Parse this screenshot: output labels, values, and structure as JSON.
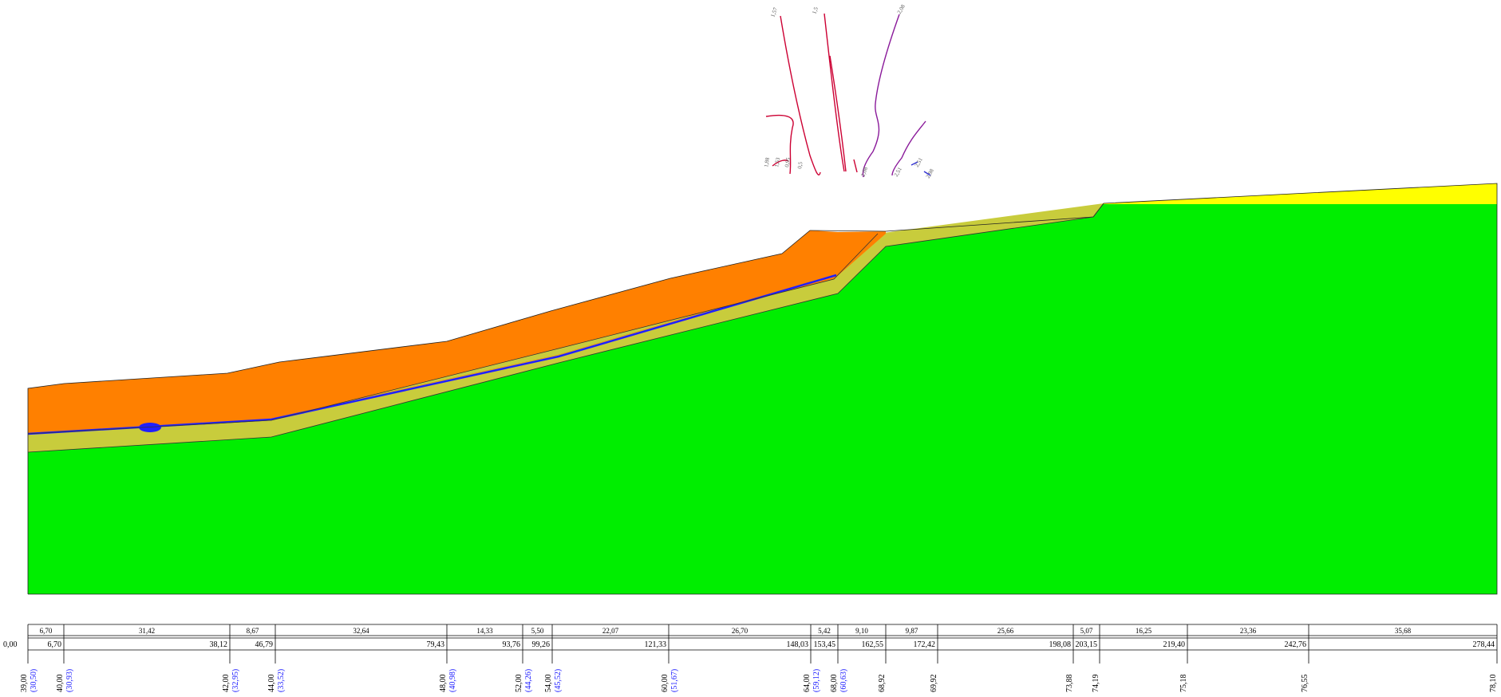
{
  "colors": {
    "bedrock": "#00ee00",
    "weathered": "#c8cc3c",
    "fill": "#ff8000",
    "topsoil": "#ffff00",
    "water_line": "#2020ff",
    "iso_red": "#cc0033",
    "iso_purple": "#8a1a9a",
    "iso_blue": "#3030d0"
  },
  "isolines": [
    {
      "label": "1,57",
      "color": "iso_red"
    },
    {
      "label": "1,5",
      "color": "iso_red"
    },
    {
      "label": "2,08",
      "color": "iso_purple"
    },
    {
      "label": "1,88",
      "color": "iso_red"
    },
    {
      "label": "1,53",
      "color": "iso_red"
    },
    {
      "label": "0,95",
      "color": "iso_red"
    },
    {
      "label": "0,5",
      "color": "iso_red"
    },
    {
      "label": "2,08",
      "color": "iso_purple"
    },
    {
      "label": "2,51",
      "color": "iso_blue"
    },
    {
      "label": "2,51",
      "color": "iso_blue"
    },
    {
      "label": "2,98",
      "color": "iso_blue"
    }
  ],
  "bottom_table": {
    "start_cumulative": "0,00",
    "columns": [
      {
        "seg": "6,70",
        "cum": "6,70",
        "elev": "39,00",
        "h": "(30,50)"
      },
      {
        "seg": "31,42",
        "cum": "38,12",
        "elev": "40,00",
        "h": "(30,93)"
      },
      {
        "seg": "8,67",
        "cum": "46,79",
        "elev": "42,00",
        "h": "(32,95)"
      },
      {
        "seg": "32,64",
        "cum": "79,43",
        "elev": "44,00",
        "h": "(33,52)"
      },
      {
        "seg": "14,33",
        "cum": "93,76",
        "elev": "48,00",
        "h": "(40,98)"
      },
      {
        "seg": "5,50",
        "cum": "99,26",
        "elev": "52,00",
        "h": "(44,26)"
      },
      {
        "seg": "22,07",
        "cum": "121,33",
        "elev": "54,00",
        "h": "(45,52)"
      },
      {
        "seg": "26,70",
        "cum": "148,03",
        "elev": "60,00",
        "h": "(51,67)"
      },
      {
        "seg": "5,42",
        "cum": "153,45",
        "elev": "64,00",
        "h": "(59,12)"
      },
      {
        "seg": "9,10",
        "cum": "162,55",
        "elev": "68,00",
        "h": "(60,63)"
      },
      {
        "seg": "9,87",
        "cum": "172,42",
        "elev": "68,92",
        "h": ""
      },
      {
        "seg": "25,66",
        "cum": "198,08",
        "elev": "69,92",
        "h": ""
      },
      {
        "seg": "5,07",
        "cum": "203,15",
        "elev": "73,88",
        "h": ""
      },
      {
        "seg": "16,25",
        "cum": "219,40",
        "elev": "74,19",
        "h": ""
      },
      {
        "seg": "23,36",
        "cum": "242,76",
        "elev": "75,18",
        "h": ""
      },
      {
        "seg": "35,68",
        "cum": "278,44",
        "elev": "76,55",
        "h": ""
      }
    ],
    "final_elev": "78,10"
  }
}
